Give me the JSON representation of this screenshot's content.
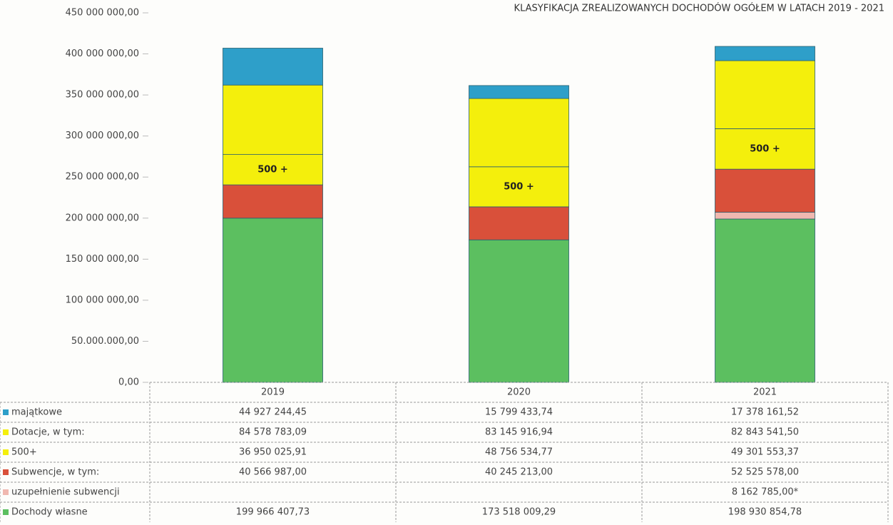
{
  "chart_data": {
    "type": "bar",
    "stacked": true,
    "title": "KLASYFIKACJA ZREALIZOWANYCH DOCHODÓW OGÓŁEM W LATACH 2019 - 2021",
    "annotation": "500 +",
    "categories": [
      "2019",
      "2020",
      "2021"
    ],
    "series": [
      {
        "name": "majątkowe",
        "color": "#2e9fc9",
        "values": [
          44927244.45,
          15799433.74,
          17378161.52
        ],
        "value_labels": [
          "44 927 244,45",
          "15 799 433,74",
          "17 378 161,52"
        ]
      },
      {
        "name": "Dotacje, w tym:",
        "color": "#f4ef0c",
        "values": [
          84578783.09,
          83145916.94,
          82843541.5
        ],
        "value_labels": [
          "84 578 783,09",
          "83 145 916,94",
          "82 843 541,50"
        ]
      },
      {
        "name": "500+",
        "color": "#f4ef0c",
        "values": [
          36950025.91,
          48756534.77,
          49301553.37
        ],
        "value_labels": [
          "36 950 025,91",
          "48 756 534,77",
          "49 301 553,37"
        ]
      },
      {
        "name": "Subwencje, w tym:",
        "color": "#d9503a",
        "values": [
          40566987.0,
          40245213.0,
          52525578.0
        ],
        "value_labels": [
          "40 566 987,00",
          "40 245 213,00",
          "52 525 578,00"
        ]
      },
      {
        "name": "uzupełnienie subwencji",
        "color": "#f0b8b0",
        "values": [
          null,
          null,
          8162785.0
        ],
        "value_labels": [
          null,
          null,
          "8 162 785,00*"
        ]
      },
      {
        "name": "Dochody własne",
        "color": "#5cbf60",
        "values": [
          199966407.73,
          173518009.29,
          198930854.78
        ],
        "value_labels": [
          "199 966 407,73",
          "173 518 009,29",
          "198 930 854,78"
        ]
      }
    ],
    "ylim": [
      0,
      450000000
    ],
    "yticks": [
      {
        "value": 0,
        "label": "0,00"
      },
      {
        "value": 50000000,
        "label": "50.000.000,00"
      },
      {
        "value": 100000000,
        "label": "100 000 000,00"
      },
      {
        "value": 150000000,
        "label": "150 000 000,00"
      },
      {
        "value": 200000000,
        "label": "200 000 000,00"
      },
      {
        "value": 250000000,
        "label": "250 000 000,00"
      },
      {
        "value": 300000000,
        "label": "300 000 000,00"
      },
      {
        "value": 350000000,
        "label": "350 000 000,00"
      },
      {
        "value": 400000000,
        "label": "400 000 000,00"
      },
      {
        "value": 450000000,
        "label": "450 000 000,00"
      }
    ]
  }
}
